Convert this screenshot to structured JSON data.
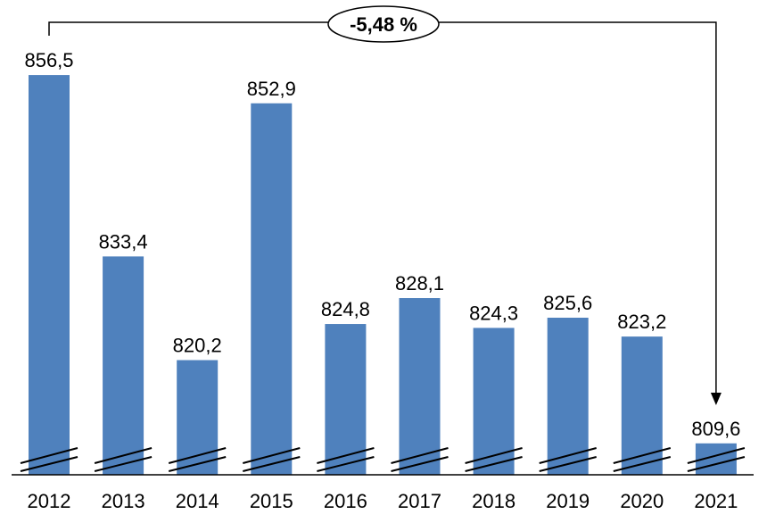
{
  "chart_data": {
    "type": "bar",
    "title": "",
    "xlabel": "",
    "ylabel": "",
    "categories": [
      "2012",
      "2013",
      "2014",
      "2015",
      "2016",
      "2017",
      "2018",
      "2019",
      "2020",
      "2021"
    ],
    "values": [
      856.5,
      833.4,
      820.2,
      852.9,
      824.8,
      828.1,
      824.3,
      825.6,
      823.2,
      809.6
    ],
    "data_labels": [
      "856,5",
      "833,4",
      "820,2",
      "852,9",
      "824,8",
      "828,1",
      "824,3",
      "825,6",
      "823,2",
      "809,6"
    ],
    "ylim": [
      805.6,
      860
    ],
    "axis_break": true,
    "grid": false,
    "bar_color": "#4F81BD",
    "annotation": {
      "text": "-5,48 %",
      "from": "2012",
      "to": "2021"
    }
  }
}
